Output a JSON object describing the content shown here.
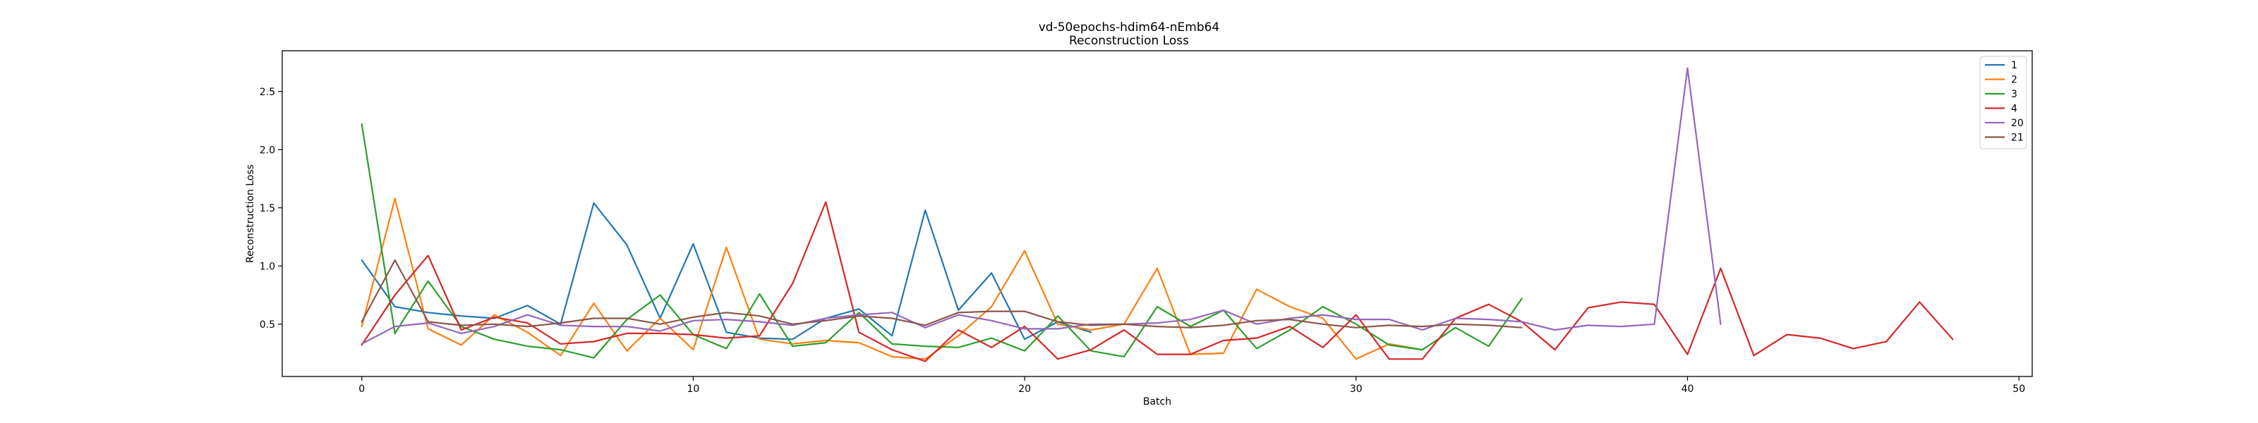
{
  "chart_data": {
    "type": "line",
    "title": "vd-50epochs-hdim64-nEmb64",
    "subtitle": "Reconstruction Loss",
    "xlabel": "Batch",
    "ylabel": "Reconstruction Loss",
    "xlim": [
      -2.4,
      50.4
    ],
    "ylim": [
      0.05,
      2.85
    ],
    "xticks": [
      0,
      10,
      20,
      30,
      40,
      50
    ],
    "yticks": [
      0.5,
      1.0,
      1.5,
      2.0,
      2.5
    ],
    "xtick_labels": [
      "0",
      "10",
      "20",
      "30",
      "40",
      "50"
    ],
    "ytick_labels": [
      "0.5",
      "1.0",
      "1.5",
      "2.0",
      "2.5"
    ],
    "grid": false,
    "legend_position": "top-right",
    "series": [
      {
        "name": "1",
        "color": "#1f77b4",
        "x": [
          0,
          1,
          2,
          3,
          4,
          5,
          6,
          7,
          8,
          9,
          10,
          11,
          12,
          13,
          14,
          15,
          16,
          17,
          18,
          19,
          20,
          21,
          22
        ],
        "y": [
          1.05,
          0.65,
          0.6,
          0.57,
          0.55,
          0.66,
          0.5,
          1.54,
          1.18,
          0.55,
          1.19,
          0.43,
          0.38,
          0.37,
          0.55,
          0.63,
          0.4,
          1.48,
          0.62,
          0.94,
          0.37,
          0.52,
          0.43
        ]
      },
      {
        "name": "2",
        "color": "#ff7f0e",
        "x": [
          0,
          1,
          2,
          3,
          4,
          5,
          6,
          7,
          8,
          9,
          10,
          11,
          12,
          13,
          14,
          15,
          16,
          17,
          18,
          19,
          20,
          21,
          22,
          23,
          24,
          25,
          26,
          27,
          28,
          29,
          30,
          31,
          32
        ],
        "y": [
          0.48,
          1.58,
          0.46,
          0.32,
          0.58,
          0.43,
          0.23,
          0.68,
          0.27,
          0.55,
          0.28,
          1.16,
          0.37,
          0.33,
          0.36,
          0.34,
          0.22,
          0.2,
          0.4,
          0.65,
          1.13,
          0.5,
          0.45,
          0.5,
          0.98,
          0.24,
          0.25,
          0.8,
          0.65,
          0.55,
          0.2,
          0.33,
          0.28
        ]
      },
      {
        "name": "3",
        "color": "#2ca02c",
        "x": [
          0,
          1,
          2,
          3,
          4,
          5,
          6,
          7,
          8,
          9,
          10,
          11,
          12,
          13,
          14,
          15,
          16,
          17,
          18,
          19,
          20,
          21,
          22,
          23,
          24,
          25,
          26,
          27,
          28,
          29,
          30,
          31,
          32,
          33,
          34,
          35
        ],
        "y": [
          2.22,
          0.42,
          0.87,
          0.48,
          0.37,
          0.31,
          0.28,
          0.21,
          0.54,
          0.75,
          0.41,
          0.29,
          0.76,
          0.31,
          0.34,
          0.6,
          0.33,
          0.31,
          0.3,
          0.38,
          0.27,
          0.57,
          0.27,
          0.22,
          0.65,
          0.48,
          0.62,
          0.29,
          0.45,
          0.65,
          0.5,
          0.32,
          0.28,
          0.47,
          0.31,
          0.72
        ]
      },
      {
        "name": "4",
        "color": "#d62728",
        "x": [
          0,
          1,
          2,
          3,
          4,
          5,
          6,
          7,
          8,
          9,
          10,
          11,
          12,
          13,
          14,
          15,
          16,
          17,
          18,
          19,
          20,
          21,
          22,
          23,
          24,
          25,
          26,
          27,
          28,
          29,
          30,
          31,
          32,
          33,
          34,
          35,
          36,
          37,
          38,
          39,
          40,
          41,
          42,
          43,
          44,
          45,
          46,
          47,
          48
        ],
        "y": [
          0.32,
          0.75,
          1.09,
          0.45,
          0.56,
          0.51,
          0.33,
          0.35,
          0.42,
          0.42,
          0.41,
          0.38,
          0.4,
          0.85,
          1.55,
          0.43,
          0.28,
          0.18,
          0.45,
          0.3,
          0.48,
          0.2,
          0.28,
          0.45,
          0.24,
          0.24,
          0.36,
          0.38,
          0.48,
          0.3,
          0.58,
          0.2,
          0.2,
          0.55,
          0.67,
          0.52,
          0.28,
          0.64,
          0.69,
          0.67,
          0.24,
          0.98,
          0.23,
          0.41,
          0.38,
          0.29,
          0.35,
          0.69,
          0.37
        ]
      },
      {
        "name": "20",
        "color": "#9467bd",
        "x": [
          0,
          1,
          2,
          3,
          4,
          5,
          6,
          7,
          8,
          9,
          10,
          11,
          12,
          13,
          14,
          15,
          16,
          17,
          18,
          19,
          20,
          21,
          22,
          23,
          24,
          25,
          26,
          27,
          28,
          29,
          30,
          31,
          32,
          33,
          34,
          35,
          36,
          37,
          38,
          39,
          40,
          41
        ],
        "y": [
          0.33,
          0.48,
          0.51,
          0.42,
          0.48,
          0.58,
          0.49,
          0.48,
          0.48,
          0.44,
          0.53,
          0.54,
          0.52,
          0.49,
          0.55,
          0.58,
          0.6,
          0.47,
          0.58,
          0.53,
          0.46,
          0.46,
          0.5,
          0.5,
          0.51,
          0.54,
          0.62,
          0.5,
          0.55,
          0.58,
          0.54,
          0.54,
          0.45,
          0.55,
          0.54,
          0.52,
          0.45,
          0.49,
          0.48,
          0.5,
          2.7,
          0.5
        ]
      },
      {
        "name": "21",
        "color": "#8c564b",
        "x": [
          0,
          1,
          2,
          3,
          4,
          5,
          6,
          7,
          8,
          9,
          10,
          11,
          12,
          13,
          14,
          15,
          16,
          17,
          18,
          19,
          20,
          21,
          22,
          23,
          24,
          25,
          26,
          27,
          28,
          29,
          30,
          31,
          32,
          33,
          34,
          35
        ],
        "y": [
          0.52,
          1.05,
          0.52,
          0.49,
          0.5,
          0.48,
          0.51,
          0.55,
          0.55,
          0.5,
          0.56,
          0.6,
          0.57,
          0.5,
          0.53,
          0.57,
          0.55,
          0.49,
          0.6,
          0.61,
          0.61,
          0.52,
          0.49,
          0.5,
          0.48,
          0.47,
          0.49,
          0.53,
          0.54,
          0.5,
          0.47,
          0.49,
          0.48,
          0.5,
          0.49,
          0.47
        ]
      }
    ]
  }
}
